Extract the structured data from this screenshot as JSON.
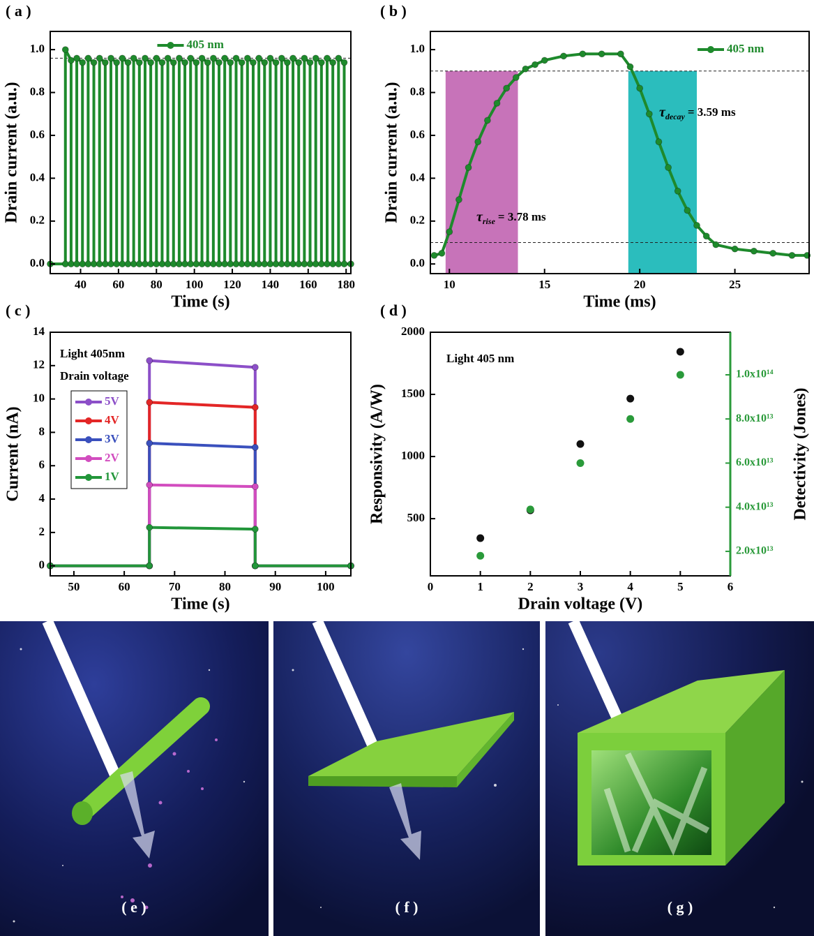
{
  "chart_data": [
    {
      "type": "line",
      "panel_label": "( a )",
      "x_label": "Time (s)",
      "y_label": "Drain current (a.u.)",
      "xlim": [
        24,
        182.5
      ],
      "xticks": [
        40,
        60,
        80,
        100,
        120,
        140,
        160,
        180
      ],
      "ylim": [
        -0.045,
        1.085
      ],
      "yticks": [
        {
          "value": 0,
          "label": "0.0"
        },
        0.2,
        0.4,
        0.6,
        0.8,
        {
          "value": 1,
          "label": "1.0"
        }
      ],
      "hlines": [
        0.96
      ],
      "legend": "upper center",
      "x": [
        24,
        32,
        32,
        35,
        35,
        38,
        38,
        41,
        41,
        44,
        44,
        47,
        47,
        50,
        50,
        53,
        53,
        56,
        56,
        59,
        59,
        62,
        62,
        65,
        65,
        68,
        68,
        71,
        71,
        74,
        74,
        77,
        77,
        80,
        80,
        83,
        83,
        86,
        86,
        89,
        89,
        92,
        92,
        95,
        95,
        98,
        98,
        101,
        101,
        104,
        104,
        107,
        107,
        110,
        110,
        113,
        113,
        116,
        116,
        119,
        119,
        122,
        122,
        125,
        125,
        128,
        128,
        131,
        131,
        134,
        134,
        137,
        137,
        140,
        140,
        143,
        143,
        146,
        146,
        149,
        149,
        152,
        152,
        155,
        155,
        158,
        158,
        161,
        161,
        164,
        164,
        167,
        167,
        170,
        170,
        173,
        173,
        176,
        176,
        179,
        179,
        182.5
      ],
      "series": [
        {
          "name": "405 nm",
          "color": "#1e8a2c",
          "values": [
            0,
            0,
            1.0,
            0.95,
            0,
            0,
            0.96,
            0.94,
            0,
            0,
            0.96,
            0.94,
            0,
            0,
            0.96,
            0.94,
            0,
            0,
            0.96,
            0.94,
            0,
            0,
            0.96,
            0.94,
            0,
            0,
            0.96,
            0.94,
            0,
            0,
            0.96,
            0.94,
            0,
            0,
            0.96,
            0.94,
            0,
            0,
            0.96,
            0.94,
            0,
            0,
            0.96,
            0.94,
            0,
            0,
            0.96,
            0.94,
            0,
            0,
            0.96,
            0.94,
            0,
            0,
            0.96,
            0.94,
            0,
            0,
            0.96,
            0.94,
            0,
            0,
            0.96,
            0.94,
            0,
            0,
            0.96,
            0.94,
            0,
            0,
            0.96,
            0.94,
            0,
            0,
            0.96,
            0.94,
            0,
            0,
            0.96,
            0.94,
            0,
            0,
            0.96,
            0.94,
            0,
            0,
            0.96,
            0.94,
            0,
            0,
            0.96,
            0.94,
            0,
            0,
            0.96,
            0.94,
            0,
            0,
            0.96,
            0.94,
            0,
            0
          ]
        }
      ]
    },
    {
      "type": "line",
      "panel_label": "( b )",
      "x_label": "Time (ms)",
      "y_label": "Drain current (a.u.)",
      "xlim": [
        9,
        28.9
      ],
      "xticks": [
        10,
        15,
        20,
        25
      ],
      "ylim": [
        -0.045,
        1.085
      ],
      "yticks": [
        {
          "value": 0,
          "label": "0.0"
        },
        0.2,
        0.4,
        0.6,
        0.8,
        {
          "value": 1,
          "label": "1.0"
        }
      ],
      "hlines": [
        0.9,
        0.1
      ],
      "legend": "upper right",
      "shaded": [
        {
          "range": [
            9.8,
            13.6
          ],
          "top": 0.9,
          "color": "#c773b9"
        },
        {
          "range": [
            19.4,
            23
          ],
          "top": 0.9,
          "color": "#2bbdbd"
        }
      ],
      "annotations": [
        {
          "symbol": "τ",
          "subscript": "rise",
          "text": "= 3.78 ms"
        },
        {
          "symbol": "τ",
          "subscript": "decay",
          "text": "= 3.59 ms"
        }
      ],
      "x": [
        9.2,
        9.6,
        10,
        10.5,
        11,
        11.5,
        12,
        12.5,
        13,
        13.5,
        14,
        14.5,
        15,
        16,
        17,
        18,
        19,
        19.5,
        20,
        20.5,
        21,
        21.5,
        22,
        22.5,
        23,
        23.5,
        24,
        25,
        26,
        27,
        28,
        28.8
      ],
      "series": [
        {
          "name": "405 nm",
          "color": "#1e8a2c",
          "values": [
            0.04,
            0.05,
            0.15,
            0.3,
            0.45,
            0.57,
            0.67,
            0.75,
            0.82,
            0.87,
            0.91,
            0.93,
            0.95,
            0.97,
            0.98,
            0.98,
            0.98,
            0.92,
            0.82,
            0.7,
            0.57,
            0.45,
            0.34,
            0.25,
            0.18,
            0.13,
            0.09,
            0.07,
            0.06,
            0.05,
            0.04,
            0.04
          ]
        }
      ]
    },
    {
      "type": "line",
      "panel_label": "( c )",
      "x_label": "Time (s)",
      "y_label": "Current (nA)",
      "xlim": [
        45.3,
        105
      ],
      "xticks": [
        50,
        60,
        70,
        80,
        90,
        100
      ],
      "ylim": [
        -0.6,
        14
      ],
      "yticks": [
        0,
        2,
        4,
        6,
        8,
        10,
        12,
        14
      ],
      "legend": "upper left",
      "annotations": [
        "Light 405nm",
        "Drain voltage"
      ],
      "x": [
        45.3,
        65,
        65,
        86,
        86,
        105
      ],
      "series": [
        {
          "name": "5V",
          "color": "#8c4fc8",
          "values": [
            0,
            0,
            12.3,
            11.9,
            0,
            0
          ]
        },
        {
          "name": "4V",
          "color": "#e32626",
          "values": [
            0,
            0,
            9.8,
            9.5,
            0,
            0
          ]
        },
        {
          "name": "3V",
          "color": "#3a50bd",
          "values": [
            0,
            0,
            7.35,
            7.1,
            0,
            0
          ]
        },
        {
          "name": "2V",
          "color": "#d24dbf",
          "values": [
            0,
            0,
            4.85,
            4.75,
            0,
            0
          ]
        },
        {
          "name": "1V",
          "color": "#22963a",
          "values": [
            0,
            0,
            2.3,
            2.2,
            0,
            0
          ]
        }
      ]
    },
    {
      "type": "scatter",
      "panel_label": "( d )",
      "x_label": "Drain voltage (V)",
      "y_label": "Responsivity (A/W)",
      "y2_label": "Detectivity (Jones)",
      "xlim": [
        0,
        6
      ],
      "xticks": [
        0,
        1,
        2,
        3,
        4,
        5,
        6
      ],
      "ylim": [
        40,
        2000
      ],
      "yticks": [
        500,
        1000,
        1500,
        2000
      ],
      "y2lim": [
        8900000000000.0,
        119300000000000.0
      ],
      "y2ticks": [
        {
          "value": 20000000000000.0,
          "label": "2.0x10¹³"
        },
        {
          "value": 40000000000000.0,
          "label": "4.0x10¹³"
        },
        {
          "value": 60000000000000.0,
          "label": "6.0x10¹³"
        },
        {
          "value": 80000000000000.0,
          "label": "8.0x10¹³"
        },
        {
          "value": 100000000000000.0,
          "label": "1.0x10¹⁴"
        }
      ],
      "annotations": [
        "Light 405 nm"
      ],
      "x": [
        1,
        2,
        3,
        4,
        5
      ],
      "series": [
        {
          "color": "#111111",
          "values": [
            343,
            567,
            1101,
            1466,
            1843
          ]
        },
        {
          "color": "#2a9a3a",
          "axis": "y2",
          "values": [
            18000000000000.0,
            39000000000000.0,
            60000000000000.0,
            80000000000000.0,
            100000000000000.0
          ]
        }
      ]
    }
  ],
  "illustrations": [
    {
      "label": "( e )"
    },
    {
      "label": "( f )"
    },
    {
      "label": "( g )"
    }
  ]
}
